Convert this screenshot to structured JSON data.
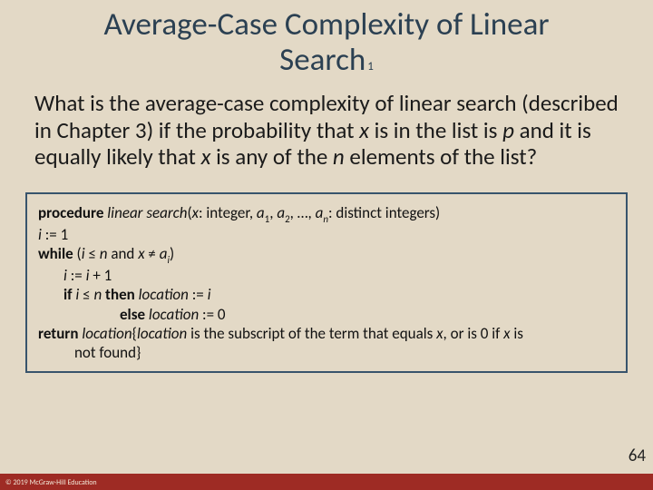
{
  "colors": {
    "background": "#e3d9c6",
    "title": "#2b4052",
    "box_border": "#38546c",
    "footer": "#9e2b24",
    "text": "#1a1a1a"
  },
  "fonts": {
    "family": "Calibri",
    "title_size_pt": 35,
    "body_size_pt": 25,
    "code_size_pt": 17,
    "pagenum_size_pt": 19,
    "copyright_size_pt": 8
  },
  "title": {
    "line1": "Average-Case Complexity of Linear",
    "line2": "Search",
    "sub": "1"
  },
  "body": {
    "t1": "What is the average-case complexity of linear search (described in Chapter 3) if the probability that ",
    "x1": "x",
    "t2": " is in the list is ",
    "p": "p",
    "t3": " and it is equally likely that ",
    "x2": "x",
    "t4": " is any of the ",
    "n": "n",
    "t5": " elements of the list?"
  },
  "code": {
    "kw_procedure": "procedure",
    "fn": " linear search",
    "sig1": "(",
    "x": "x",
    "sig2": ": integer,  ",
    "a": "a",
    "s1": "1",
    "sig3": ", ",
    "s2": "2",
    "sig4": ", …, ",
    "sn": "n",
    "sig5": ": distinct integers)",
    "l2a": "i",
    "l2b": " := 1",
    "kw_while": "while",
    "l3a": " (",
    "l3i": "i",
    "l3b": " ≤ ",
    "l3n": "n",
    "l3c": " and ",
    "l3x": "x",
    "l3d": " ≠ ",
    "l3ai": "a",
    "l3si": "i",
    "l3e": ")",
    "l4a": "i",
    "l4b": " := ",
    "l4c": "i",
    "l4d": " + 1",
    "kw_if": "if",
    "l5a": " ",
    "l5i": "i",
    "l5b": " ≤ ",
    "l5n": "n",
    "kw_then": " then",
    "l5loc": " location",
    "l5c": " := ",
    "l5d": "i",
    "kw_else": "else",
    "l6loc": " location",
    "l6a": " := 0",
    "kw_return": "return",
    "l7loc": " location",
    "l7a": "{",
    "l7locit": "location",
    "l7b": " is the subscript of the term that equals ",
    "l7x": "x",
    "l7c": ", or is 0 if ",
    "l7x2": "x",
    "l7d": " is",
    "l8": "not found}"
  },
  "page_number": "64",
  "copyright": "© 2019 McGraw-Hill Education"
}
